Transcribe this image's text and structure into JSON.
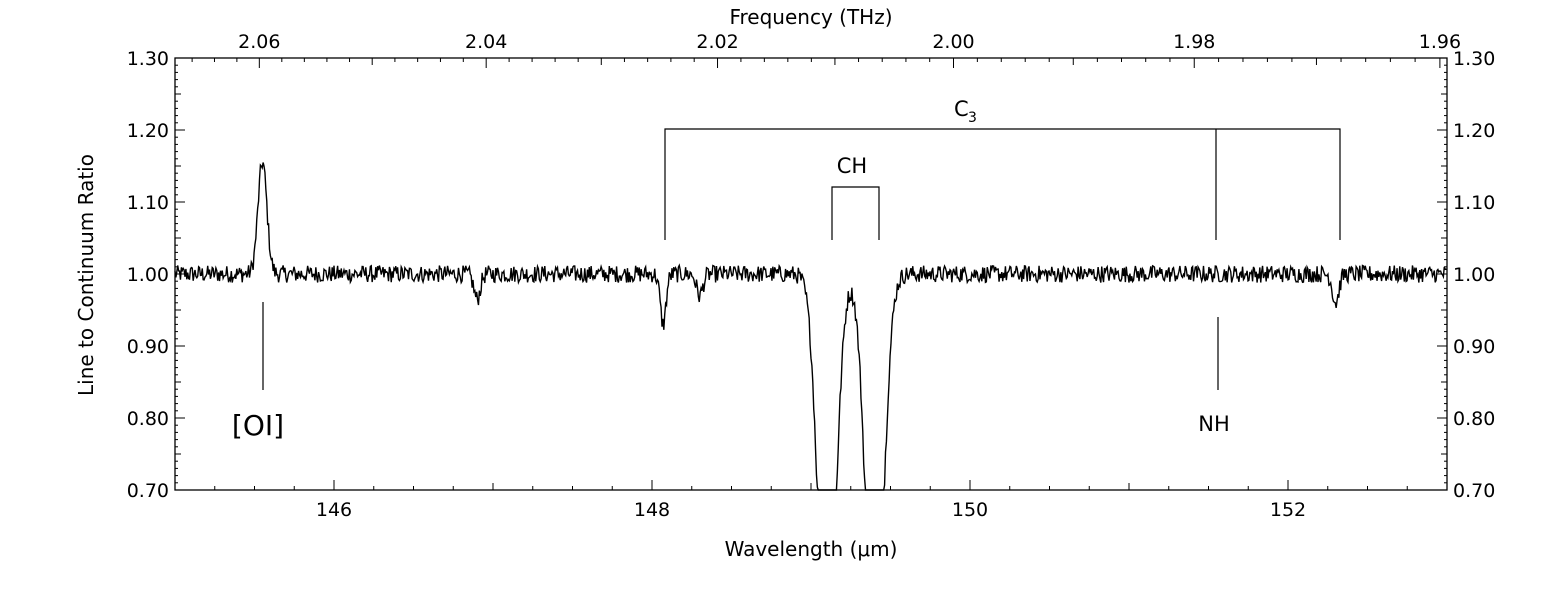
{
  "chart_data": {
    "type": "line",
    "xlabel": "Wavelength (μm)",
    "ylabel": "Line to Continuum Ratio",
    "top_axis_label": "Frequency (THz)",
    "xlim": [
      145.0,
      153.0
    ],
    "ylim": [
      0.7,
      1.3
    ],
    "x_ticks": [
      146,
      148,
      150,
      152
    ],
    "x_tick_labels": [
      "146",
      "148",
      "150",
      "152"
    ],
    "y_ticks": [
      0.7,
      0.8,
      0.9,
      1.0,
      1.1,
      1.2,
      1.3
    ],
    "y_tick_labels": [
      "0.70",
      "0.80",
      "0.90",
      "1.00",
      "1.10",
      "1.20",
      "1.30"
    ],
    "top_ticks_thz": [
      2.06,
      2.04,
      2.02,
      2.0,
      1.98,
      1.96
    ],
    "top_tick_labels": [
      "2.06",
      "2.04",
      "2.02",
      "2.00",
      "1.98",
      "1.96"
    ],
    "grid": false,
    "series": [
      {
        "line_color": "#000000",
        "baseline": 1.0,
        "noise_amplitude": 0.012,
        "features": [
          {
            "center_um": 145.55,
            "depth": 0.155,
            "width_um": 0.028
          },
          {
            "center_um": 146.9,
            "depth": -0.035,
            "width_um": 0.02
          },
          {
            "center_um": 148.07,
            "depth": -0.07,
            "width_um": 0.018
          },
          {
            "center_um": 148.3,
            "depth": -0.03,
            "width_um": 0.02
          },
          {
            "center_um": 149.1,
            "depth": -0.55,
            "width_um": 0.055
          },
          {
            "center_um": 149.4,
            "depth": -0.55,
            "width_um": 0.055
          },
          {
            "center_um": 152.3,
            "depth": -0.04,
            "width_um": 0.02
          }
        ]
      }
    ],
    "annotations": {
      "oi_label": "[OI]",
      "nh_label": "NH",
      "ch_label": "CH",
      "c3_label": "C",
      "c3_subscript": "3"
    }
  }
}
